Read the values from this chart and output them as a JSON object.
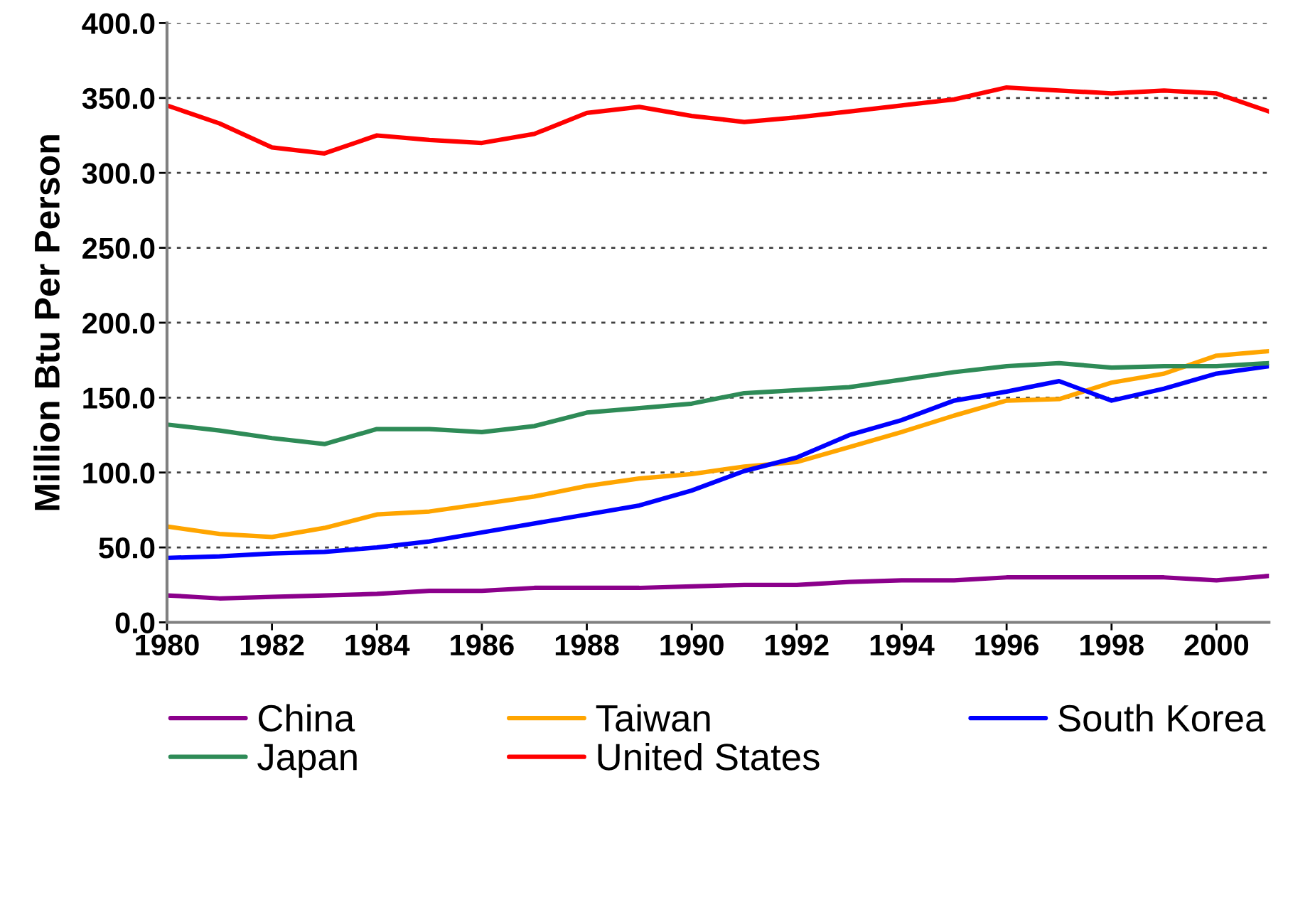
{
  "chart_data": {
    "type": "line",
    "ylabel": "Million Btu Per Person",
    "x": [
      1980,
      1981,
      1982,
      1983,
      1984,
      1985,
      1986,
      1987,
      1988,
      1989,
      1990,
      1991,
      1992,
      1993,
      1994,
      1995,
      1996,
      1997,
      1998,
      1999,
      2000,
      2001
    ],
    "xlim": [
      1980,
      2001
    ],
    "xticks": [
      1980,
      1982,
      1984,
      1986,
      1988,
      1990,
      1992,
      1994,
      1996,
      1998,
      2000
    ],
    "ylim": [
      0,
      400
    ],
    "yticks": [
      {
        "value": 0,
        "label": "0.0"
      },
      {
        "value": 50,
        "label": "50.0"
      },
      {
        "value": 100,
        "label": "100.0"
      },
      {
        "value": 150,
        "label": "150.0"
      },
      {
        "value": 200,
        "label": "200.0"
      },
      {
        "value": 250,
        "label": "250.0"
      },
      {
        "value": 300,
        "label": "300.0"
      },
      {
        "value": 350,
        "label": "350.0"
      },
      {
        "value": 400,
        "label": "400.0"
      }
    ],
    "grid": "y",
    "legend": "bottom",
    "marker": "none",
    "line_style": "solid",
    "series": [
      {
        "name": "China",
        "color": "#8b008b",
        "values": [
          18,
          16,
          17,
          18,
          19,
          21,
          21,
          23,
          23,
          23,
          24,
          25,
          25,
          27,
          28,
          28,
          30,
          30,
          30,
          30,
          28,
          31
        ]
      },
      {
        "name": "Taiwan",
        "color": "#ffa500",
        "values": [
          64,
          59,
          57,
          63,
          72,
          74,
          79,
          84,
          91,
          96,
          99,
          104,
          107,
          117,
          127,
          138,
          148,
          149,
          160,
          166,
          178,
          181
        ]
      },
      {
        "name": "South Korea",
        "color": "#0000ff",
        "values": [
          43,
          44,
          46,
          47,
          50,
          54,
          60,
          66,
          72,
          78,
          88,
          101,
          110,
          125,
          135,
          148,
          154,
          161,
          148,
          156,
          166,
          171
        ]
      },
      {
        "name": "Japan",
        "color": "#2e8b57",
        "values": [
          132,
          128,
          123,
          119,
          129,
          129,
          127,
          131,
          140,
          143,
          146,
          153,
          155,
          157,
          162,
          167,
          171,
          173,
          170,
          171,
          171,
          173
        ]
      },
      {
        "name": "United States",
        "color": "#ff0000",
        "values": [
          345,
          333,
          317,
          313,
          325,
          322,
          320,
          326,
          340,
          344,
          338,
          334,
          337,
          341,
          345,
          349,
          357,
          355,
          353,
          355,
          353,
          341
        ]
      }
    ]
  }
}
